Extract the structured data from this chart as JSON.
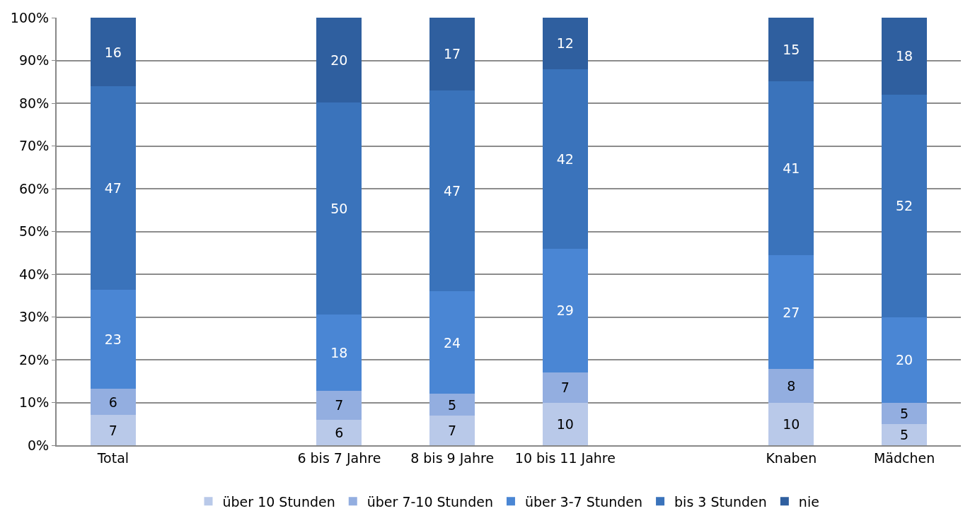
{
  "chart_data": {
    "type": "bar",
    "stacked": true,
    "categories": [
      "Total",
      null,
      "6 bis 7 Jahre",
      "8 bis 9 Jahre",
      "10 bis 11 Jahre",
      null,
      "Knaben",
      "Mädchen"
    ],
    "series": [
      {
        "name": "über 10 Stunden",
        "color": "#b9c9e9",
        "values": [
          7.1,
          null,
          5.9,
          7,
          10,
          null,
          9.9,
          5
        ],
        "value_labels": [
          "7",
          null,
          "6",
          "7",
          "10",
          null,
          "10",
          "5"
        ]
      },
      {
        "name": "über 7-10 Stunden",
        "color": "#93aee0",
        "values": [
          6.1,
          null,
          6.9,
          5,
          7,
          null,
          7.9,
          5
        ],
        "value_labels": [
          "6",
          null,
          "7",
          "5",
          "7",
          null,
          "8",
          "5"
        ]
      },
      {
        "name": "über 3-7 Stunden",
        "color": "#4a86d4",
        "values": [
          23.2,
          null,
          17.8,
          24,
          29,
          null,
          26.7,
          20
        ],
        "value_labels": [
          "23",
          null,
          "18",
          "24",
          "29",
          null,
          "27",
          "20"
        ]
      },
      {
        "name": "bis 3 Stunden",
        "color": "#3a73bb",
        "values": [
          47.5,
          null,
          49.5,
          47,
          42,
          null,
          40.6,
          52
        ],
        "value_labels": [
          "47",
          null,
          "50",
          "47",
          "42",
          null,
          "41",
          "52"
        ]
      },
      {
        "name": "nie",
        "color": "#2f5f9f",
        "values": [
          16.1,
          null,
          19.9,
          17,
          12,
          null,
          14.9,
          18
        ],
        "value_labels": [
          "16",
          null,
          "20",
          "17",
          "12",
          null,
          "15",
          "18"
        ]
      }
    ],
    "ylim": [
      0,
      100
    ],
    "yticks": [
      {
        "value": 0,
        "label": "0%"
      },
      {
        "value": 10,
        "label": "10%"
      },
      {
        "value": 20,
        "label": "20%"
      },
      {
        "value": 30,
        "label": "30%"
      },
      {
        "value": 40,
        "label": "40%"
      },
      {
        "value": 50,
        "label": "50%"
      },
      {
        "value": 60,
        "label": "60%"
      },
      {
        "value": 70,
        "label": "70%"
      },
      {
        "value": 80,
        "label": "80%"
      },
      {
        "value": 90,
        "label": "90%"
      },
      {
        "value": 100,
        "label": "100%"
      }
    ],
    "grid": "y",
    "legend": "bottom"
  }
}
